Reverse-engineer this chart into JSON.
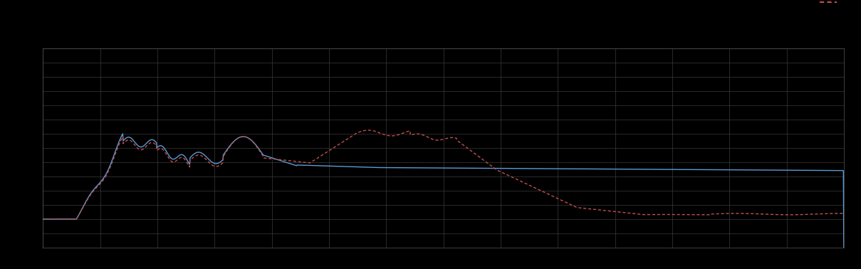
{
  "background_color": "#000000",
  "plot_bg_color": "#000000",
  "grid_color": "#3a3a3a",
  "line1_color": "#5B9BD5",
  "line2_color": "#C0504D",
  "figsize": [
    12.09,
    3.78
  ],
  "dpi": 100,
  "xlim": [
    0,
    120
  ],
  "ylim": [
    0,
    14
  ],
  "n_xgrid": 14,
  "n_ygrid": 14
}
